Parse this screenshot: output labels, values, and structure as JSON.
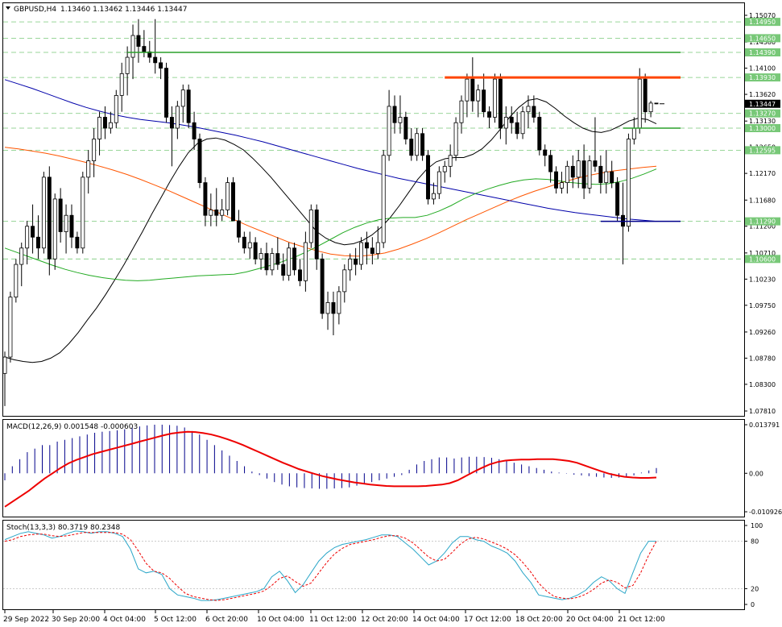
{
  "chart_data": {
    "type": "candlestick",
    "header": {
      "symbol": "GBPUSD,H4",
      "ohlc_text": "1.13460 1.13462 1.13446 1.13447"
    },
    "price_axis": {
      "ylim": [
        1.0781,
        1.1507
      ],
      "ticks": [
        "1.15070",
        "1.14580",
        "1.14100",
        "1.13620",
        "1.13130",
        "1.12650",
        "1.12170",
        "1.11680",
        "1.11200",
        "1.10710",
        "1.10230",
        "1.09750",
        "1.09260",
        "1.08780",
        "1.08300",
        "1.07810"
      ]
    },
    "level_labels": [
      {
        "text": "1.14950",
        "price": 1.1495,
        "color": "#78c878"
      },
      {
        "text": "1.14650",
        "price": 1.1465,
        "color": "#78c878"
      },
      {
        "text": "1.14390",
        "price": 1.1439,
        "color": "#78c878"
      },
      {
        "text": "1.13930",
        "price": 1.1393,
        "color": "#78c878"
      },
      {
        "text": "1.13270",
        "price": 1.1327,
        "color": "#78c878"
      },
      {
        "text": "1.13000",
        "price": 1.13,
        "color": "#78c878"
      },
      {
        "text": "1.12595",
        "price": 1.12595,
        "color": "#78c878"
      },
      {
        "text": "1.11290",
        "price": 1.1129,
        "color": "#78c878"
      },
      {
        "text": "1.10600",
        "price": 1.106,
        "color": "#78c878"
      }
    ],
    "current_price": {
      "text": "1.13447",
      "price": 1.13447
    },
    "time_axis": [
      "29 Sep 2022",
      "30 Sep 20:00",
      "4 Oct 04:00",
      "5 Oct 12:00",
      "6 Oct 20:00",
      "10 Oct 04:00",
      "11 Oct 12:00",
      "12 Oct 20:00",
      "14 Oct 04:00",
      "17 Oct 12:00",
      "18 Oct 20:00",
      "20 Oct 04:00",
      "21 Oct 12:00"
    ],
    "candles": [
      [
        1.085,
        1.089,
        1.079,
        1.088
      ],
      [
        1.088,
        1.1,
        1.087,
        1.099
      ],
      [
        1.099,
        1.106,
        1.098,
        1.105
      ],
      [
        1.105,
        1.109,
        1.101,
        1.108
      ],
      [
        1.108,
        1.113,
        1.105,
        1.112
      ],
      [
        1.112,
        1.116,
        1.107,
        1.11
      ],
      [
        1.11,
        1.114,
        1.106,
        1.108
      ],
      [
        1.108,
        1.122,
        1.107,
        1.121
      ],
      [
        1.121,
        1.123,
        1.103,
        1.106
      ],
      [
        1.106,
        1.118,
        1.104,
        1.117
      ],
      [
        1.117,
        1.119,
        1.109,
        1.111
      ],
      [
        1.111,
        1.116,
        1.107,
        1.114
      ],
      [
        1.114,
        1.116,
        1.108,
        1.11
      ],
      [
        1.11,
        1.111,
        1.107,
        1.108
      ],
      [
        1.108,
        1.122,
        1.107,
        1.121
      ],
      [
        1.121,
        1.126,
        1.118,
        1.124
      ],
      [
        1.124,
        1.13,
        1.121,
        1.128
      ],
      [
        1.128,
        1.133,
        1.125,
        1.132
      ],
      [
        1.132,
        1.134,
        1.128,
        1.13
      ],
      [
        1.13,
        1.133,
        1.129,
        1.131
      ],
      [
        1.131,
        1.137,
        1.13,
        1.136
      ],
      [
        1.136,
        1.142,
        1.133,
        1.14
      ],
      [
        1.14,
        1.145,
        1.136,
        1.143
      ],
      [
        1.143,
        1.149,
        1.139,
        1.147
      ],
      [
        1.147,
        1.15,
        1.142,
        1.145
      ],
      [
        1.145,
        1.148,
        1.143,
        1.144
      ],
      [
        1.144,
        1.146,
        1.142,
        1.143
      ],
      [
        1.143,
        1.15,
        1.14,
        1.142
      ],
      [
        1.142,
        1.143,
        1.139,
        1.141
      ],
      [
        1.141,
        1.142,
        1.131,
        1.132
      ],
      [
        1.132,
        1.134,
        1.123,
        1.13
      ],
      [
        1.13,
        1.135,
        1.128,
        1.134
      ],
      [
        1.134,
        1.138,
        1.131,
        1.137
      ],
      [
        1.137,
        1.138,
        1.13,
        1.131
      ],
      [
        1.131,
        1.133,
        1.126,
        1.128
      ],
      [
        1.128,
        1.129,
        1.119,
        1.12
      ],
      [
        1.12,
        1.121,
        1.112,
        1.114
      ],
      [
        1.114,
        1.118,
        1.112,
        1.115
      ],
      [
        1.115,
        1.119,
        1.112,
        1.114
      ],
      [
        1.114,
        1.117,
        1.113,
        1.115
      ],
      [
        1.115,
        1.121,
        1.114,
        1.12
      ],
      [
        1.12,
        1.121,
        1.113,
        1.113
      ],
      [
        1.113,
        1.115,
        1.109,
        1.11
      ],
      [
        1.11,
        1.111,
        1.107,
        1.108
      ],
      [
        1.108,
        1.111,
        1.106,
        1.109
      ],
      [
        1.109,
        1.11,
        1.105,
        1.106
      ],
      [
        1.106,
        1.108,
        1.104,
        1.107
      ],
      [
        1.107,
        1.109,
        1.103,
        1.104
      ],
      [
        1.104,
        1.108,
        1.103,
        1.107
      ],
      [
        1.107,
        1.11,
        1.104,
        1.105
      ],
      [
        1.105,
        1.107,
        1.102,
        1.103
      ],
      [
        1.103,
        1.109,
        1.102,
        1.108
      ],
      [
        1.108,
        1.109,
        1.103,
        1.104
      ],
      [
        1.104,
        1.106,
        1.101,
        1.102
      ],
      [
        1.102,
        1.111,
        1.1,
        1.109
      ],
      [
        1.109,
        1.116,
        1.108,
        1.115
      ],
      [
        1.115,
        1.116,
        1.104,
        1.106
      ],
      [
        1.106,
        1.107,
        1.095,
        1.096
      ],
      [
        1.096,
        1.1,
        1.093,
        1.098
      ],
      [
        1.098,
        1.1,
        1.092,
        1.096
      ],
      [
        1.096,
        1.101,
        1.094,
        1.1
      ],
      [
        1.1,
        1.105,
        1.098,
        1.104
      ],
      [
        1.104,
        1.107,
        1.102,
        1.106
      ],
      [
        1.106,
        1.108,
        1.103,
        1.105
      ],
      [
        1.105,
        1.11,
        1.104,
        1.109
      ],
      [
        1.109,
        1.111,
        1.105,
        1.108
      ],
      [
        1.108,
        1.11,
        1.105,
        1.107
      ],
      [
        1.107,
        1.112,
        1.106,
        1.109
      ],
      [
        1.109,
        1.126,
        1.108,
        1.125
      ],
      [
        1.125,
        1.137,
        1.124,
        1.134
      ],
      [
        1.134,
        1.136,
        1.129,
        1.131
      ],
      [
        1.131,
        1.136,
        1.129,
        1.132
      ],
      [
        1.132,
        1.133,
        1.127,
        1.128
      ],
      [
        1.128,
        1.13,
        1.124,
        1.125
      ],
      [
        1.125,
        1.13,
        1.124,
        1.129
      ],
      [
        1.129,
        1.13,
        1.124,
        1.125
      ],
      [
        1.125,
        1.126,
        1.116,
        1.117
      ],
      [
        1.117,
        1.12,
        1.116,
        1.118
      ],
      [
        1.118,
        1.123,
        1.117,
        1.122
      ],
      [
        1.122,
        1.124,
        1.12,
        1.123
      ],
      [
        1.123,
        1.127,
        1.121,
        1.125
      ],
      [
        1.125,
        1.132,
        1.124,
        1.131
      ],
      [
        1.131,
        1.136,
        1.129,
        1.135
      ],
      [
        1.135,
        1.14,
        1.132,
        1.139
      ],
      [
        1.139,
        1.143,
        1.133,
        1.135
      ],
      [
        1.135,
        1.138,
        1.132,
        1.137
      ],
      [
        1.137,
        1.14,
        1.132,
        1.133
      ],
      [
        1.133,
        1.134,
        1.13,
        1.132
      ],
      [
        1.132,
        1.14,
        1.131,
        1.139
      ],
      [
        1.139,
        1.14,
        1.128,
        1.13
      ],
      [
        1.13,
        1.134,
        1.127,
        1.132
      ],
      [
        1.132,
        1.134,
        1.129,
        1.131
      ],
      [
        1.131,
        1.133,
        1.128,
        1.129
      ],
      [
        1.129,
        1.134,
        1.128,
        1.133
      ],
      [
        1.133,
        1.136,
        1.13,
        1.134
      ],
      [
        1.134,
        1.136,
        1.131,
        1.132
      ],
      [
        1.132,
        1.133,
        1.125,
        1.126
      ],
      [
        1.126,
        1.127,
        1.123,
        1.125
      ],
      [
        1.125,
        1.126,
        1.12,
        1.122
      ],
      [
        1.122,
        1.123,
        1.118,
        1.119
      ],
      [
        1.119,
        1.122,
        1.118,
        1.12
      ],
      [
        1.12,
        1.124,
        1.118,
        1.123
      ],
      [
        1.123,
        1.125,
        1.119,
        1.121
      ],
      [
        1.121,
        1.126,
        1.119,
        1.124
      ],
      [
        1.124,
        1.127,
        1.117,
        1.119
      ],
      [
        1.119,
        1.125,
        1.118,
        1.124
      ],
      [
        1.124,
        1.132,
        1.122,
        1.123
      ],
      [
        1.123,
        1.125,
        1.118,
        1.12
      ],
      [
        1.12,
        1.126,
        1.118,
        1.122
      ],
      [
        1.122,
        1.124,
        1.119,
        1.12
      ],
      [
        1.12,
        1.121,
        1.113,
        1.114
      ],
      [
        1.114,
        1.12,
        1.105,
        1.112
      ],
      [
        1.112,
        1.129,
        1.111,
        1.128
      ],
      [
        1.128,
        1.132,
        1.127,
        1.13
      ],
      [
        1.13,
        1.141,
        1.129,
        1.139
      ],
      [
        1.139,
        1.14,
        1.131,
        1.133
      ],
      [
        1.133,
        1.135,
        1.132,
        1.1346
      ],
      [
        1.1346,
        1.1346,
        1.1344,
        1.13447
      ]
    ],
    "indicators": {
      "ma_black": [
        1.088,
        1.0875,
        1.0872,
        1.087,
        1.0872,
        1.0878,
        1.0888,
        1.0905,
        1.0925,
        1.0948,
        1.097,
        1.0995,
        1.1022,
        1.105,
        1.108,
        1.111,
        1.1142,
        1.1172,
        1.1202,
        1.123,
        1.1255,
        1.1272,
        1.128,
        1.1282,
        1.1278,
        1.127,
        1.126,
        1.1245,
        1.1228,
        1.121,
        1.119,
        1.117,
        1.115,
        1.113,
        1.111,
        1.1098,
        1.109,
        1.1086,
        1.1088,
        1.1094,
        1.1104,
        1.1118,
        1.1136,
        1.1158,
        1.1182,
        1.1206,
        1.1225,
        1.1238,
        1.1244,
        1.1246,
        1.1246,
        1.1252,
        1.1262,
        1.1278,
        1.1298,
        1.132,
        1.1338,
        1.1351,
        1.1354,
        1.1348,
        1.1336,
        1.1322,
        1.131,
        1.13,
        1.1294,
        1.1292,
        1.1296,
        1.1304,
        1.1313,
        1.1318,
        1.1316,
        1.1308
      ],
      "ma_red": [
        1.1265,
        1.1262,
        1.1258,
        1.1254,
        1.1249,
        1.1243,
        1.1237,
        1.123,
        1.1223,
        1.1215,
        1.1206,
        1.1196,
        1.1186,
        1.1175,
        1.1164,
        1.1153,
        1.1142,
        1.1131,
        1.112,
        1.111,
        1.11,
        1.109,
        1.1082,
        1.1075,
        1.1069,
        1.1066,
        1.1065,
        1.1067,
        1.1071,
        1.1078,
        1.1087,
        1.1097,
        1.1108,
        1.112,
        1.1132,
        1.1143,
        1.1154,
        1.1165,
        1.1175,
        1.1184,
        1.1192,
        1.12,
        1.1207,
        1.1213,
        1.1218,
        1.1222,
        1.1225,
        1.1228,
        1.123
      ],
      "ma_blue": [
        1.1389,
        1.1381,
        1.1373,
        1.1364,
        1.1355,
        1.1346,
        1.1338,
        1.1331,
        1.1325,
        1.132,
        1.1316,
        1.1313,
        1.131,
        1.1306,
        1.1302,
        1.1297,
        1.1292,
        1.1287,
        1.1281,
        1.1275,
        1.1268,
        1.1261,
        1.1254,
        1.1247,
        1.124,
        1.1233,
        1.1226,
        1.122,
        1.1214,
        1.1208,
        1.1203,
        1.1198,
        1.1193,
        1.1188,
        1.1183,
        1.1178,
        1.1173,
        1.1168,
        1.1163,
        1.1158,
        1.1153,
        1.1149,
        1.1145,
        1.1142,
        1.1139,
        1.1136,
        1.1133,
        1.1131,
        1.1129
      ],
      "ma_green": [
        1.108,
        1.1072,
        1.1064,
        1.1056,
        1.1048,
        1.1041,
        1.1035,
        1.103,
        1.1026,
        1.1023,
        1.1021,
        1.102,
        1.1021,
        1.1023,
        1.1025,
        1.1027,
        1.1029,
        1.103,
        1.1031,
        1.1032,
        1.1036,
        1.1042,
        1.1048,
        1.1055,
        1.1063,
        1.1073,
        1.1084,
        1.1096,
        1.1108,
        1.1118,
        1.1126,
        1.1132,
        1.1135,
        1.1136,
        1.1136,
        1.114,
        1.1148,
        1.1158,
        1.117,
        1.118,
        1.1188,
        1.1195,
        1.1201,
        1.1205,
        1.1207,
        1.1206,
        1.1203,
        1.12,
        1.1198,
        1.1197,
        1.1198,
        1.1202,
        1.1208,
        1.1216,
        1.1225
      ]
    },
    "macd": {
      "label": "MACD(12,26,9) 0.001548 -0.000603",
      "ylim": [
        -0.01092,
        0.01379
      ],
      "ticks": [
        "0.013791",
        "0.00",
        "-0.010926"
      ],
      "histogram": [
        -0.002,
        0.002,
        0.004,
        0.006,
        0.007,
        0.008,
        0.008,
        0.009,
        0.0095,
        0.01,
        0.0105,
        0.011,
        0.0115,
        0.0118,
        0.012,
        0.0122,
        0.0125,
        0.013,
        0.0133,
        0.0136,
        0.0138,
        0.0138,
        0.0137,
        0.0135,
        0.013,
        0.012,
        0.011,
        0.0095,
        0.008,
        0.0065,
        0.005,
        0.0035,
        0.002,
        0.0005,
        -0.0005,
        -0.0015,
        -0.0025,
        -0.0032,
        -0.0037,
        -0.004,
        -0.0042,
        -0.0043,
        -0.0044,
        -0.0044,
        -0.0043,
        -0.0042,
        -0.004,
        -0.0035,
        -0.003,
        -0.0025,
        -0.002,
        -0.0015,
        -0.001,
        -0.0005,
        0.001,
        0.0025,
        0.0035,
        0.004,
        0.0045,
        0.0045,
        0.0042,
        0.0045,
        0.0047,
        0.0047,
        0.0046,
        0.0044,
        0.004,
        0.0035,
        0.003,
        0.0025,
        0.002,
        0.0015,
        0.001,
        0.0005,
        0.0002,
        -0.0001,
        -0.0004,
        -0.0006,
        -0.0008,
        -0.001,
        -0.0012,
        -0.0013,
        -0.0012,
        -0.001,
        -0.0006,
        0.0002,
        0.0008,
        0.0015
      ],
      "signal": [
        -0.0095,
        -0.008,
        -0.0065,
        -0.005,
        -0.0032,
        -0.0015,
        0.0,
        0.0015,
        0.0028,
        0.0038,
        0.0046,
        0.0054,
        0.006,
        0.0066,
        0.0072,
        0.0078,
        0.0084,
        0.009,
        0.0096,
        0.0102,
        0.0108,
        0.0113,
        0.0116,
        0.0118,
        0.0117,
        0.0114,
        0.011,
        0.0104,
        0.0097,
        0.0089,
        0.008,
        0.007,
        0.006,
        0.005,
        0.004,
        0.003,
        0.0021,
        0.0012,
        0.0005,
        -0.0002,
        -0.0008,
        -0.0013,
        -0.0018,
        -0.0022,
        -0.0026,
        -0.0029,
        -0.0032,
        -0.0034,
        -0.0036,
        -0.0037,
        -0.0037,
        -0.0037,
        -0.0037,
        -0.0036,
        -0.0034,
        -0.0032,
        -0.0028,
        -0.002,
        -0.0008,
        0.0004,
        0.0015,
        0.0025,
        0.0032,
        0.0036,
        0.0038,
        0.0039,
        0.0039,
        0.004,
        0.004,
        0.004,
        0.0038,
        0.0035,
        0.003,
        0.0022,
        0.0014,
        0.0006,
        -0.0001,
        -0.0006,
        -0.001,
        -0.0012,
        -0.0013,
        -0.0013,
        -0.0012
      ]
    },
    "stoch": {
      "label": "Stoch(13,3,3) 80.3719 80.2348",
      "ylim": [
        0,
        100
      ],
      "ticks": [
        "100",
        "80",
        "20",
        "0"
      ],
      "k": [
        82,
        86,
        90,
        92,
        90,
        88,
        84,
        86,
        90,
        93,
        92,
        90,
        92,
        92,
        90,
        86,
        70,
        45,
        40,
        42,
        38,
        20,
        12,
        10,
        8,
        5,
        5,
        6,
        8,
        10,
        12,
        14,
        16,
        20,
        35,
        42,
        30,
        15,
        25,
        40,
        55,
        65,
        72,
        76,
        78,
        80,
        82,
        85,
        88,
        88,
        86,
        78,
        70,
        60,
        50,
        55,
        65,
        78,
        86,
        86,
        82,
        80,
        74,
        70,
        65,
        55,
        40,
        28,
        12,
        10,
        8,
        6,
        8,
        12,
        18,
        28,
        35,
        30,
        20,
        14,
        40,
        65,
        80,
        80
      ],
      "d": [
        80,
        82,
        86,
        88,
        89,
        89,
        87,
        86,
        87,
        89,
        91,
        91,
        91,
        91,
        91,
        89,
        82,
        68,
        52,
        42,
        40,
        33,
        23,
        14,
        10,
        8,
        6,
        5,
        6,
        8,
        10,
        12,
        14,
        17,
        24,
        33,
        36,
        29,
        23,
        27,
        40,
        53,
        64,
        71,
        76,
        78,
        80,
        82,
        85,
        87,
        87,
        84,
        78,
        69,
        60,
        55,
        57,
        66,
        76,
        83,
        85,
        83,
        79,
        75,
        70,
        63,
        53,
        41,
        27,
        17,
        10,
        8,
        7,
        9,
        13,
        19,
        27,
        31,
        28,
        21,
        24,
        40,
        62,
        80
      ]
    }
  }
}
